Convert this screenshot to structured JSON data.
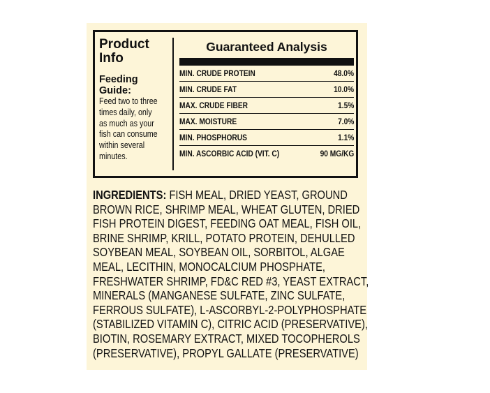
{
  "product_info": {
    "title_line1": "Product",
    "title_line2": "Info",
    "feeding_title_line1": "Feeding",
    "feeding_title_line2": "Guide:",
    "feeding_text_lines": [
      "Feed two to three",
      "times daily, only",
      "as much as your",
      "fish can consume",
      "within several",
      "minutes."
    ]
  },
  "guaranteed_analysis": {
    "title": "Guaranteed Analysis",
    "rows": [
      {
        "label": "MIN. CRUDE PROTEIN",
        "value": "48.0%"
      },
      {
        "label": "MIN. CRUDE FAT",
        "value": "10.0%"
      },
      {
        "label": "MAX. CRUDE FIBER",
        "value": "1.5%"
      },
      {
        "label": "MAX. MOISTURE",
        "value": "7.0%"
      },
      {
        "label": "MIN. PHOSPHORUS",
        "value": "1.1%"
      },
      {
        "label": "MIN. ASCORBIC ACID (VIT. C)",
        "value": "90 MG/KG"
      }
    ]
  },
  "ingredients": {
    "heading": "INGREDIENTS:",
    "lines": [
      " FISH MEAL, DRIED YEAST, GROUND",
      "BROWN RICE, SHRIMP MEAL, WHEAT GLUTEN, DRIED",
      "FISH PROTEIN DIGEST, FEEDING OAT MEAL, FISH OIL,",
      "BRINE SHRIMP, KRILL, POTATO PROTEIN, DEHULLED",
      "SOYBEAN MEAL, SOYBEAN OIL, SORBITOL, ALGAE",
      "MEAL, LECITHIN, MONOCALCIUM PHOSPHATE,",
      "FRESHWATER SHRIMP, FD&C RED #3, YEAST EXTRACT,",
      "MINERALS (MANGANESE SULFATE, ZINC SULFATE,",
      "FERROUS SULFATE), L-ASCORBYL-2-POLYPHOSPHATE",
      "(STABILIZED VITAMIN C), CITRIC ACID (PRESERVATIVE),",
      "BIOTIN, ROSEMARY EXTRACT, MIXED TOCOPHEROLS",
      "(PRESERVATIVE), PROPYL GALLATE (PRESERVATIVE)"
    ]
  }
}
